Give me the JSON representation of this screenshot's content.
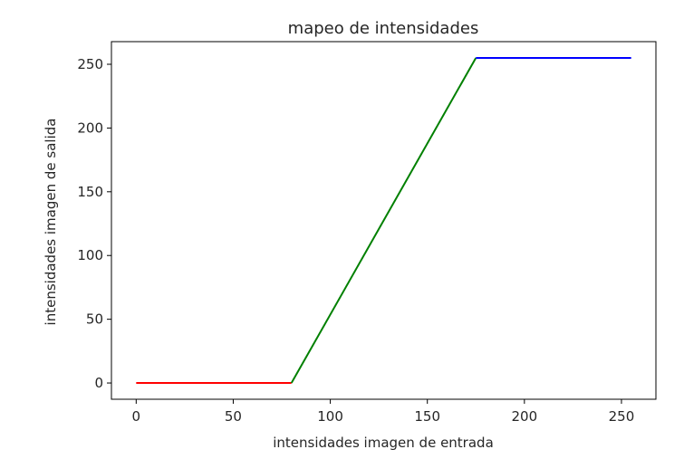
{
  "chart_data": {
    "type": "line",
    "title": "mapeo de intensidades",
    "xlabel": "intensidades imagen de entrada",
    "ylabel": "intensidades imagen de salida",
    "xlim": [
      -12.75,
      267.75
    ],
    "ylim": [
      -12.75,
      267.75
    ],
    "xticks": [
      0,
      50,
      100,
      150,
      200,
      250
    ],
    "yticks": [
      0,
      50,
      100,
      150,
      200,
      250
    ],
    "grid": false,
    "series": [
      {
        "x": [
          0,
          80
        ],
        "y": [
          0,
          0
        ],
        "color": "#ff0000"
      },
      {
        "x": [
          80,
          175
        ],
        "y": [
          0,
          255
        ],
        "color": "#008000"
      },
      {
        "x": [
          175,
          255
        ],
        "y": [
          255,
          255
        ],
        "color": "#0000ff"
      }
    ]
  }
}
